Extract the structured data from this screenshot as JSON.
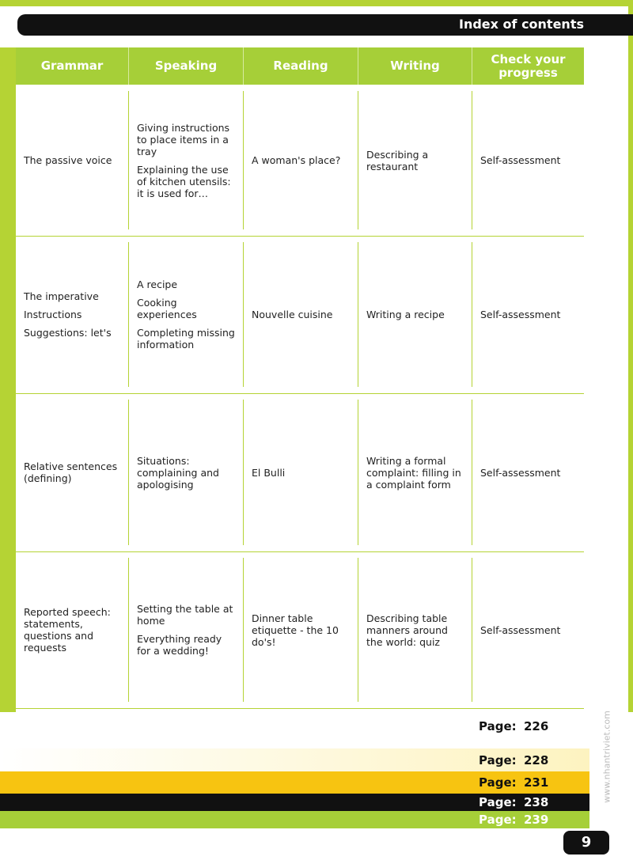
{
  "header": {
    "title": "Index of contents"
  },
  "table": {
    "columns": [
      "Grammar",
      "Speaking",
      "Reading",
      "Writing",
      "Check your progress"
    ],
    "rows": [
      [
        [
          "The passive voice"
        ],
        [
          "Giving instructions to place items in a tray",
          "Explaining the use of kitchen utensils: it is used for…"
        ],
        [
          "A woman's place?"
        ],
        [
          "Describing a restaurant"
        ],
        [
          "Self-assessment"
        ]
      ],
      [
        [
          "The imperative",
          "Instructions",
          "Suggestions: let's"
        ],
        [
          "A recipe",
          "Cooking experiences",
          "Completing missing information"
        ],
        [
          "Nouvelle cuisine"
        ],
        [
          "Writing a recipe"
        ],
        [
          "Self-assessment"
        ]
      ],
      [
        [
          "Relative sentences (defining)"
        ],
        [
          "Situations: complaining and apologising"
        ],
        [
          "El Bulli"
        ],
        [
          "Writing a formal complaint: filling in a complaint form"
        ],
        [
          "Self-assessment"
        ]
      ],
      [
        [
          "Reported speech: statements, questions and requests"
        ],
        [
          "Setting the table at home",
          "Everything ready for a wedding!"
        ],
        [
          "Dinner table etiquette - the 10 do's!"
        ],
        [
          "Describing table manners around the world: quiz"
        ],
        [
          "Self-assessment"
        ]
      ]
    ]
  },
  "pages": [
    {
      "label": "Page:",
      "number": 226
    },
    {
      "label": "Page:",
      "number": 228
    },
    {
      "label": "Page:",
      "number": 231
    },
    {
      "label": "Page:",
      "number": 238
    },
    {
      "label": "Page:",
      "number": 239
    }
  ],
  "page_number": 9,
  "watermark": "www.nhantriviet.com"
}
